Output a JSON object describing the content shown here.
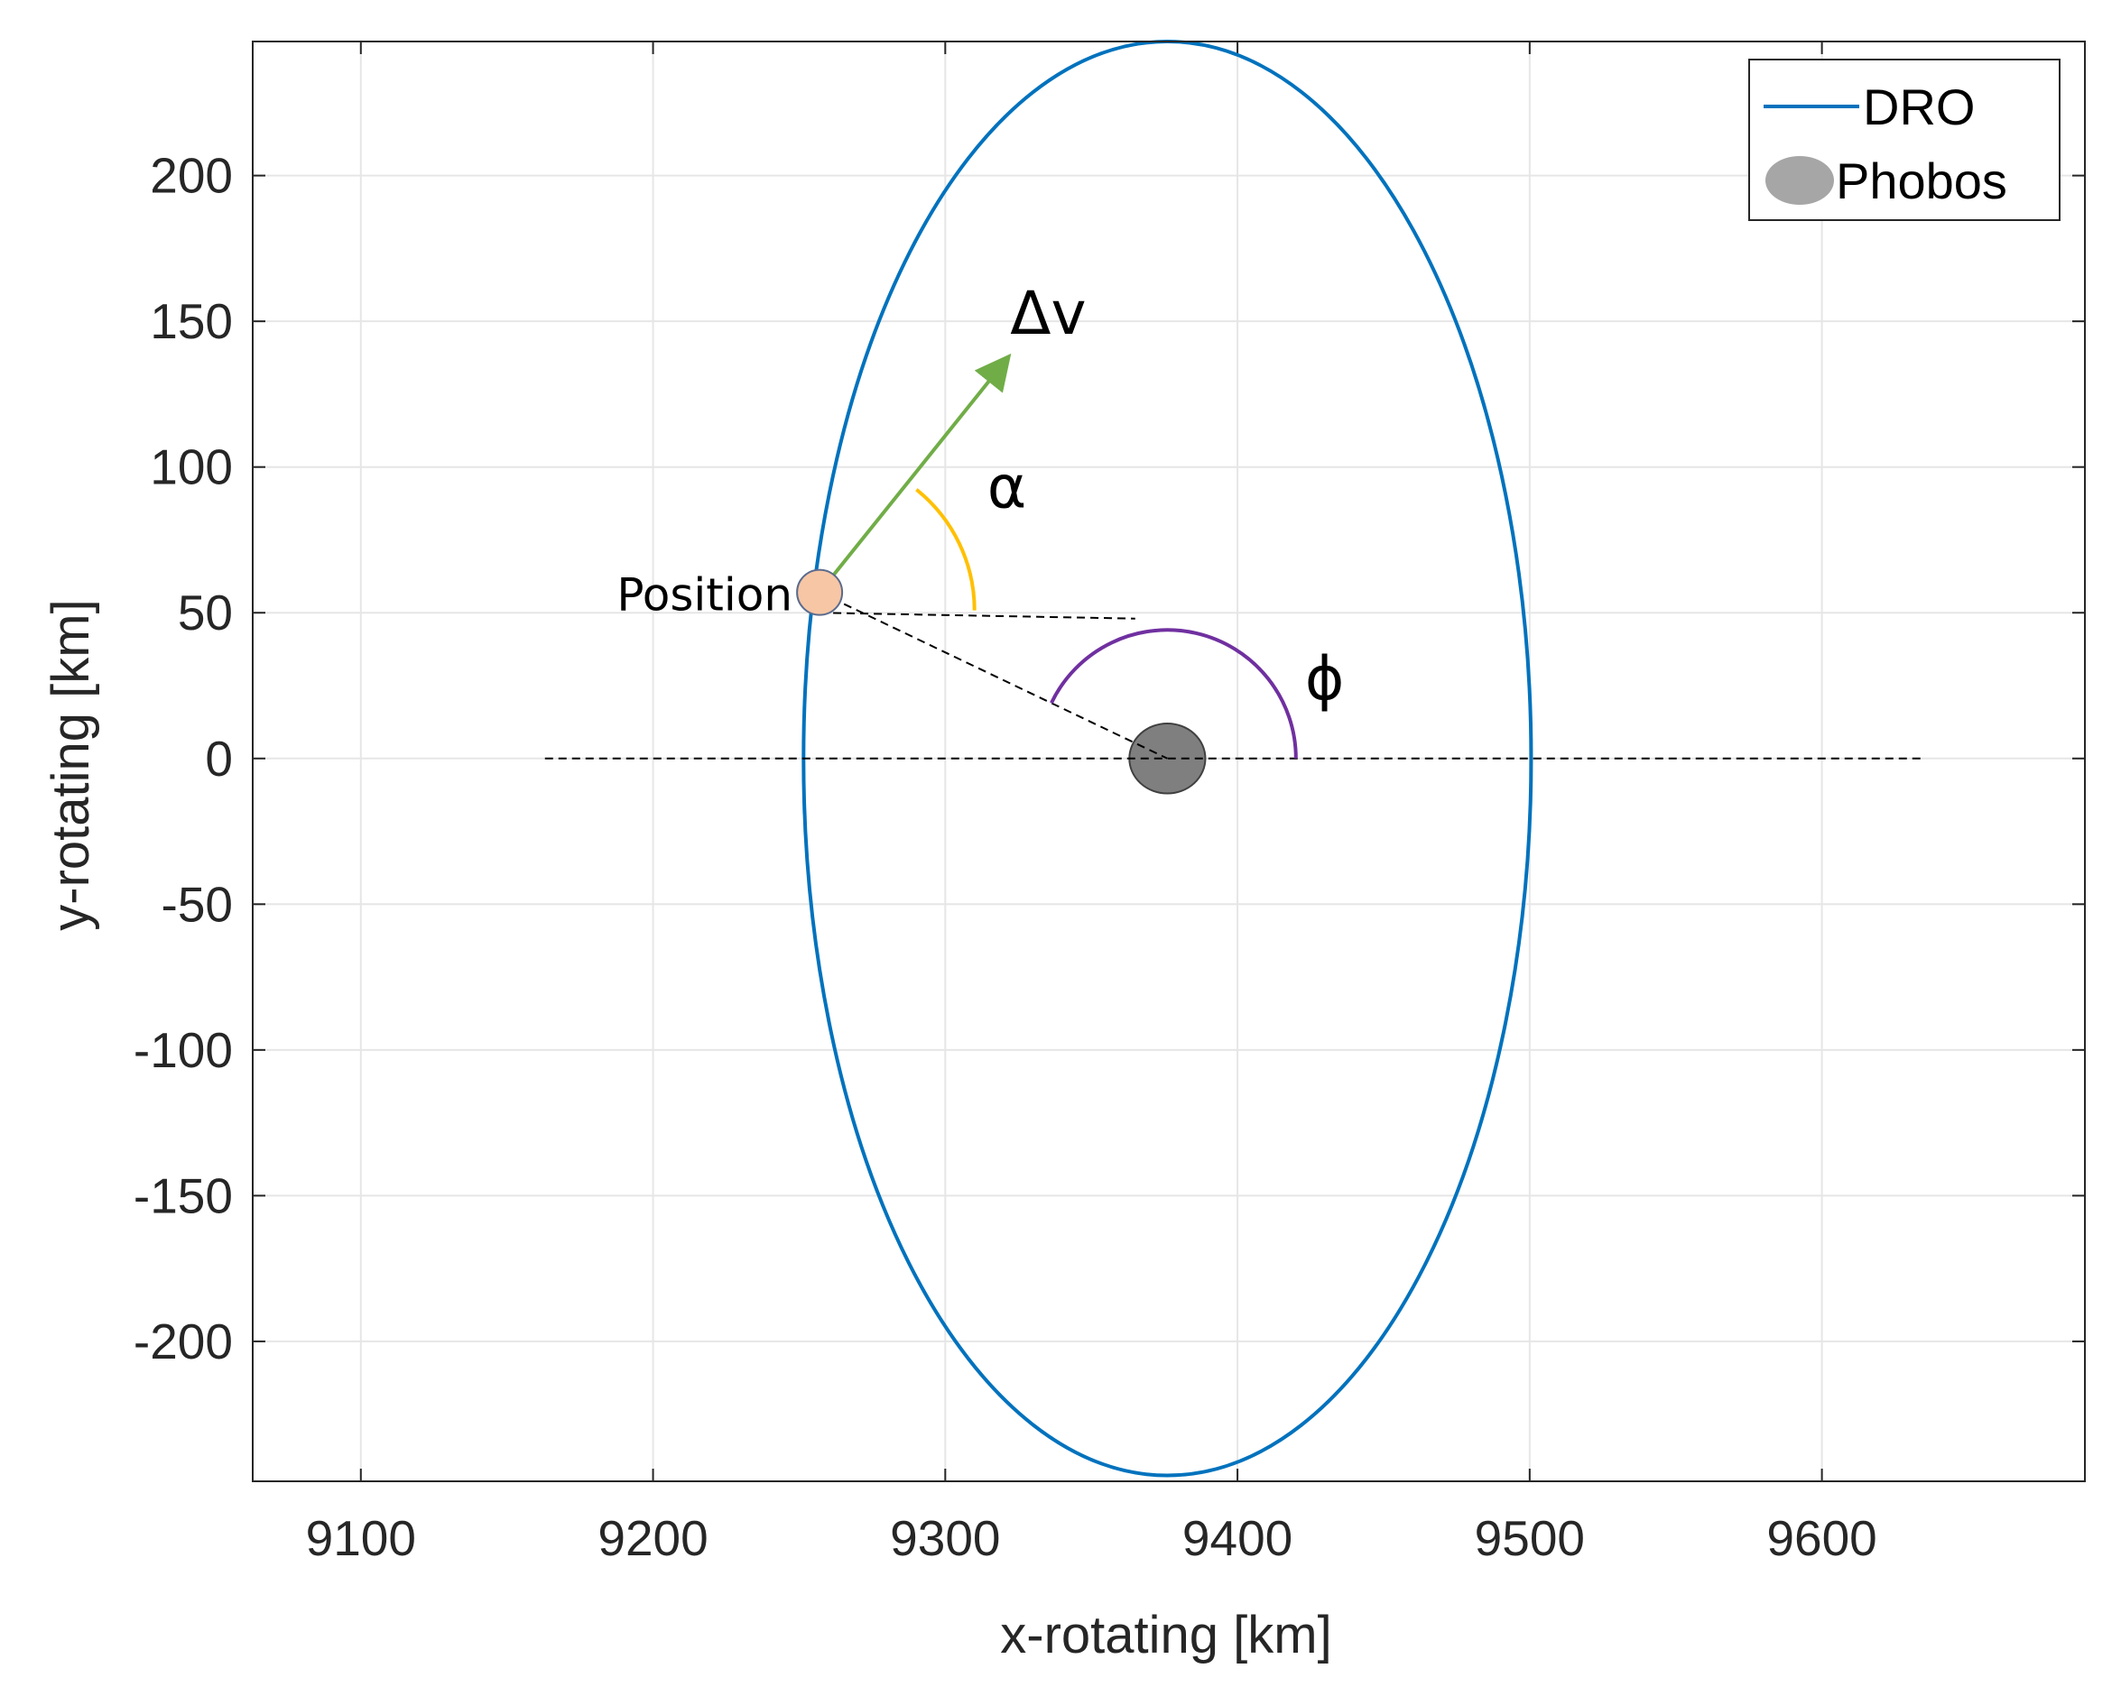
{
  "chart_data": {
    "type": "line",
    "title": "",
    "xlabel": "x-rotating [km]",
    "ylabel": "y-rotating [km]",
    "xlim": [
      9063,
      9690
    ],
    "ylim": [
      -248,
      246
    ],
    "xticks": [
      9100,
      9200,
      9300,
      9400,
      9500,
      9600
    ],
    "yticks": [
      200,
      150,
      100,
      50,
      0,
      -50,
      -100,
      -150,
      -200
    ],
    "grid": true,
    "legend_position": "top-right",
    "series": [
      {
        "name": "DRO",
        "kind": "ellipse",
        "color": "#0072BD",
        "center": [
          9376,
          0
        ],
        "semi_axis_x": 124.5,
        "semi_axis_y": 246
      },
      {
        "name": "Phobos",
        "kind": "marker",
        "color": "#7f7f7f",
        "x": 9376,
        "y": 0,
        "radius_x": 13,
        "radius_y": 12
      }
    ],
    "annotations": {
      "position": {
        "label": "Position",
        "x": 9257,
        "y": 57,
        "color": "#f7c6a5"
      },
      "delta_v": {
        "label": "Δv",
        "from": [
          9257,
          57
        ],
        "to": [
          9321,
          137
        ],
        "color": "#70ad47"
      },
      "alpha": {
        "label": "α",
        "arc_radius": 53,
        "start_deg": 0,
        "end_deg": 51.3,
        "color": "#ffc000"
      },
      "phi": {
        "label": "ϕ",
        "arc_radius": 44,
        "start_deg": 0,
        "end_deg": 154.4,
        "color": "#7030a0"
      },
      "horizontal_ref": {
        "from": [
          9257,
          50
        ],
        "to": [
          9365,
          48
        ]
      },
      "x_axis_ref": {
        "from": [
          9163,
          0
        ],
        "to": [
          9634,
          0
        ]
      }
    }
  }
}
